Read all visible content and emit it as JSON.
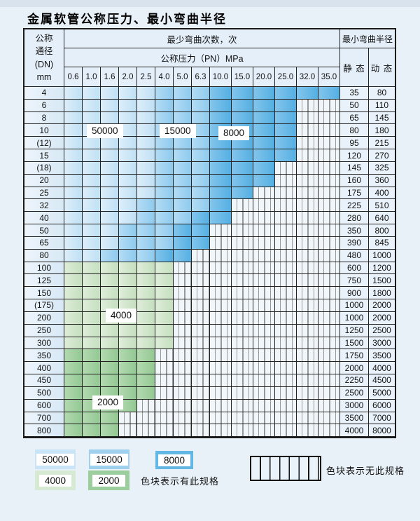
{
  "title": "金属软管公称压力、最小弯曲半径",
  "table": {
    "dn_header": [
      "公称",
      "通径",
      "(DN)",
      "mm"
    ],
    "bend_cycles_title": "最少弯曲次数，次",
    "pressure_title": "公称压力（PN）MPa",
    "radius_title": "最小弯曲半径",
    "static_label": "静 态",
    "dynamic_label": "动 态",
    "pressure_columns": [
      "0.6",
      "1.0",
      "1.6",
      "2.0",
      "2.5",
      "4.0",
      "5.0",
      "6.3",
      "10.0",
      "15.0",
      "20.0",
      "25.0",
      "32.0",
      "35.0"
    ],
    "cell_code_meaning": {
      "L": "50000次",
      "M": "15000次",
      "D": "8000次",
      "G": "4000次",
      "g": "2000次",
      "X": "无此规格"
    },
    "rows": [
      {
        "dn": "4",
        "cells": "LLLLLMMMDDDDDD",
        "static": "35",
        "dynamic": "80"
      },
      {
        "dn": "6",
        "cells": "LLLLLMMMDDDDXX",
        "static": "50",
        "dynamic": "110"
      },
      {
        "dn": "8",
        "cells": "LLLLLMMMDDDDXX",
        "static": "65",
        "dynamic": "145"
      },
      {
        "dn": "10",
        "cells": "LLLLLMMMDDDDXX",
        "static": "80",
        "dynamic": "180"
      },
      {
        "dn": "(12)",
        "cells": "LLLLLMMMDDDDXX",
        "static": "95",
        "dynamic": "215"
      },
      {
        "dn": "15",
        "cells": "LLLLLMMMDDDDXX",
        "static": "120",
        "dynamic": "270"
      },
      {
        "dn": "(18)",
        "cells": "LLLLLMMMDDDXXX",
        "static": "145",
        "dynamic": "325"
      },
      {
        "dn": "20",
        "cells": "LLLLLMMMDDDXXX",
        "static": "160",
        "dynamic": "360"
      },
      {
        "dn": "25",
        "cells": "LLLLLMMMDDXXXX",
        "static": "175",
        "dynamic": "400"
      },
      {
        "dn": "32",
        "cells": "LLLLMMMMDXXXXX",
        "static": "225",
        "dynamic": "510"
      },
      {
        "dn": "40",
        "cells": "LLLLMMMDDXXXXX",
        "static": "280",
        "dynamic": "640"
      },
      {
        "dn": "50",
        "cells": "LLLMMMDDXXXXXX",
        "static": "350",
        "dynamic": "800"
      },
      {
        "dn": "65",
        "cells": "LLLMMMDDXXXXXX",
        "static": "390",
        "dynamic": "845"
      },
      {
        "dn": "80",
        "cells": "LLMMMDDXXXXXXX",
        "static": "480",
        "dynamic": "1000"
      },
      {
        "dn": "100",
        "cells": "GGGGGGXXXXXXXX",
        "static": "600",
        "dynamic": "1200"
      },
      {
        "dn": "125",
        "cells": "GGGGGGXXXXXXXX",
        "static": "750",
        "dynamic": "1500"
      },
      {
        "dn": "150",
        "cells": "GGGGGGXXXXXXXX",
        "static": "900",
        "dynamic": "1800"
      },
      {
        "dn": "(175)",
        "cells": "GGGGGGXXXXXXXX",
        "static": "1000",
        "dynamic": "2000"
      },
      {
        "dn": "200",
        "cells": "GGGGGGXXXXXXXX",
        "static": "1000",
        "dynamic": "2000"
      },
      {
        "dn": "250",
        "cells": "GGGGGGXXXXXXXX",
        "static": "1250",
        "dynamic": "2500"
      },
      {
        "dn": "300",
        "cells": "GGGGGGXXXXXXXX",
        "static": "1500",
        "dynamic": "3000"
      },
      {
        "dn": "350",
        "cells": "gggggXXXXXXXXX",
        "static": "1750",
        "dynamic": "3500"
      },
      {
        "dn": "400",
        "cells": "gggggXXXXXXXXX",
        "static": "2000",
        "dynamic": "4000"
      },
      {
        "dn": "450",
        "cells": "gggggXXXXXXXXX",
        "static": "2250",
        "dynamic": "4500"
      },
      {
        "dn": "500",
        "cells": "gggggXXXXXXXXX",
        "static": "2500",
        "dynamic": "5000"
      },
      {
        "dn": "600",
        "cells": "ggggXXXXXXXXXX",
        "static": "3000",
        "dynamic": "6000"
      },
      {
        "dn": "700",
        "cells": "gggXXXXXXXXXXX",
        "static": "3500",
        "dynamic": "7000"
      },
      {
        "dn": "800",
        "cells": "gggXXXXXXXXXXX",
        "static": "4000",
        "dynamic": "8000"
      }
    ]
  },
  "zone_labels": {
    "z50000": "50000",
    "z15000": "15000",
    "z8000": "8000",
    "z4000": "4000",
    "z2000": "2000"
  },
  "legend": {
    "blocks": [
      {
        "label": "50000",
        "color": "#c9e4f6"
      },
      {
        "label": "15000",
        "color": "#9fd0ee"
      },
      {
        "label": "8000",
        "color": "#62b7e5"
      },
      {
        "label": "4000",
        "color": "#d6e9d2"
      },
      {
        "label": "2000",
        "color": "#9bcd9d"
      }
    ],
    "has_spec_text": "色块表示有此规格",
    "no_spec_text": "色块表示无此规格"
  },
  "colors": {
    "cycles_50000": "#c9e4f6",
    "cycles_15000": "#9fd0ee",
    "cycles_8000": "#62b7e5",
    "cycles_4000": "#d6e9d2",
    "cycles_2000": "#9bcd9d",
    "no_spec_fill": "#f1f6fb",
    "page_background": "#e9f1f8",
    "table_border": "#1b1b1b"
  }
}
